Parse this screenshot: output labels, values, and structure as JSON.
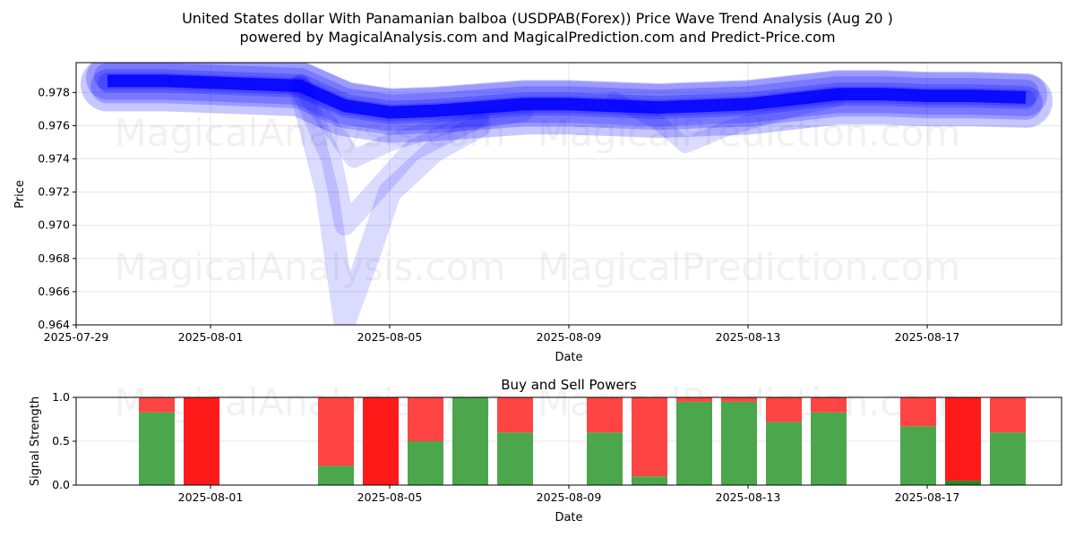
{
  "title_line1": "United States dollar With Panamanian balboa (USDPAB(Forex)) Price Wave Trend Analysis (Aug 20 )",
  "title_line2": "powered by MagicalAnalysis.com and MagicalPrediction.com and Predict-Price.com",
  "watermarks": [
    "MagicalAnalysis.com",
    "MagicalPrediction.com"
  ],
  "colors": {
    "wave": "#0000ff",
    "buy": "#4ca64c",
    "sell": "#ff4444",
    "sell_strong": "#ff1a1a",
    "buy_dark": "#228b22"
  },
  "chart_data": [
    {
      "type": "line",
      "title": "",
      "xlabel": "Date",
      "ylabel": "Price",
      "x_ticks": [
        "2025-07-29",
        "2025-08-01",
        "2025-08-05",
        "2025-08-09",
        "2025-08-13",
        "2025-08-17"
      ],
      "x_tick_days": [
        0,
        3,
        7,
        11,
        15,
        19
      ],
      "y_ticks": [
        "0.964",
        "0.966",
        "0.968",
        "0.970",
        "0.972",
        "0.974",
        "0.976",
        "0.978"
      ],
      "ylim": [
        0.964,
        0.9798
      ],
      "xlim_days": [
        0,
        22
      ],
      "grid": true,
      "series": [
        {
          "name": "wave-center",
          "x_days": [
            0.7,
            2,
            3,
            4,
            5,
            6,
            7,
            8,
            9,
            10,
            11,
            12,
            13,
            14,
            15,
            16,
            17,
            18,
            19,
            20,
            21.2
          ],
          "values": [
            0.9787,
            0.9787,
            0.9786,
            0.9785,
            0.9784,
            0.9772,
            0.9768,
            0.9769,
            0.9771,
            0.9773,
            0.9773,
            0.9772,
            0.9771,
            0.9772,
            0.9773,
            0.9776,
            0.9779,
            0.9779,
            0.9778,
            0.9778,
            0.9777
          ]
        },
        {
          "name": "wave-dip-1",
          "x_days": [
            5,
            5.6,
            6,
            6.5,
            7,
            8,
            9
          ],
          "values": [
            0.9784,
            0.972,
            0.9643,
            0.968,
            0.972,
            0.9745,
            0.976
          ]
        },
        {
          "name": "wave-dip-2",
          "x_days": [
            5,
            5.7,
            6,
            6.5,
            7.5,
            9
          ],
          "values": [
            0.9784,
            0.974,
            0.97,
            0.9715,
            0.9745,
            0.9765
          ]
        },
        {
          "name": "wave-dip-3",
          "x_days": [
            5,
            5.8,
            6.2,
            7,
            8.5,
            10
          ],
          "values": [
            0.9784,
            0.9755,
            0.974,
            0.975,
            0.9762,
            0.9768
          ]
        },
        {
          "name": "wave-dip-4",
          "x_days": [
            12,
            13,
            13.6,
            14.5,
            16,
            17
          ],
          "values": [
            0.9776,
            0.9762,
            0.9748,
            0.9758,
            0.977,
            0.9776
          ]
        }
      ]
    },
    {
      "type": "bar",
      "title": "Buy and Sell Powers",
      "xlabel": "Date",
      "ylabel": "Signal Strength",
      "x_ticks": [
        "2025-08-01",
        "2025-08-05",
        "2025-08-09",
        "2025-08-13",
        "2025-08-17"
      ],
      "x_tick_days": [
        3,
        7,
        11,
        15,
        19
      ],
      "y_ticks": [
        "0.0",
        "0.5",
        "1.0"
      ],
      "ylim": [
        0,
        1
      ],
      "xlim_days": [
        0,
        22
      ],
      "grid": true,
      "series": [
        {
          "name": "buy",
          "x_days": [
            1.8,
            4.8,
            5.8,
            6.8,
            7.8,
            8.8,
            9.8,
            11.8,
            12.8,
            13.8,
            14.8,
            15.8,
            16.8,
            18.8,
            19.8,
            20.8
          ],
          "values": [
            0.83,
            0.0,
            0.22,
            0.0,
            0.5,
            1.0,
            0.6,
            0.6,
            0.1,
            0.95,
            0.95,
            0.72,
            0.83,
            0.67,
            0.05,
            0.6
          ]
        },
        {
          "name": "sell",
          "x_days": [
            1.8,
            2.8,
            4.8,
            5.8,
            6.8,
            7.8,
            8.8,
            9.8,
            11.8,
            12.8,
            13.8,
            14.8,
            15.8,
            16.8,
            18.8,
            19.8,
            20.8
          ],
          "values": [
            0.17,
            1.0,
            0.0,
            0.78,
            1.0,
            0.5,
            0.0,
            0.4,
            0.4,
            0.9,
            0.05,
            0.05,
            0.28,
            0.17,
            0.33,
            0.95,
            0.4
          ]
        }
      ]
    }
  ]
}
